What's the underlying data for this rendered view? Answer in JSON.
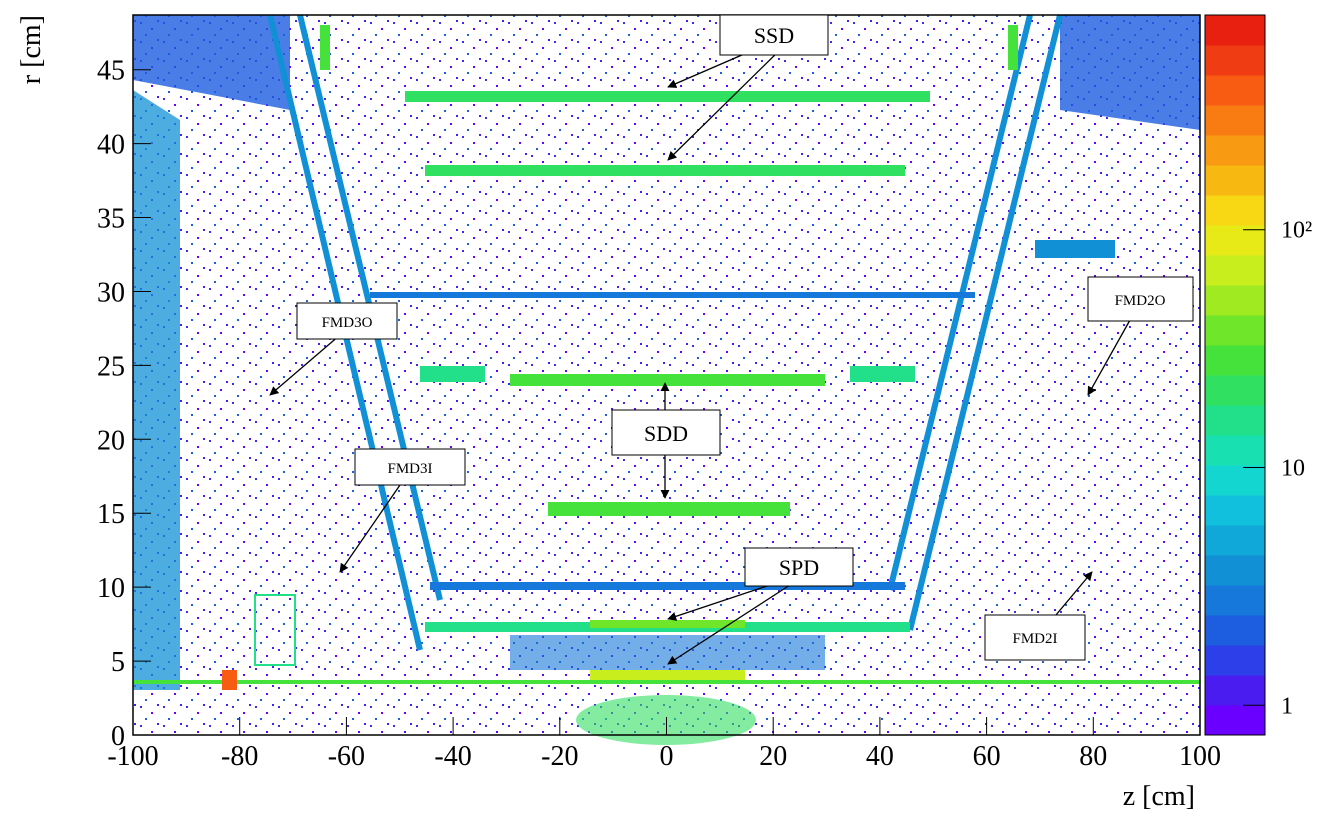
{
  "chart_data": {
    "type": "heatmap",
    "xlabel": "z [cm]",
    "ylabel": "r [cm]",
    "xlim": [
      -100,
      100
    ],
    "xticks": [
      -100,
      -80,
      -60,
      -40,
      -20,
      0,
      20,
      40,
      60,
      80,
      100
    ],
    "ylim": [
      0,
      48.7
    ],
    "yticks": [
      0,
      5,
      10,
      15,
      20,
      25,
      30,
      35,
      40,
      45
    ],
    "zlim": [
      0.75,
      800
    ],
    "zscale": "log",
    "zticks": [
      1,
      10,
      {
        "value": 100,
        "label": "10²"
      }
    ],
    "colorscale": [
      "#6a00ff",
      "#4a1cf0",
      "#2c3fe8",
      "#1d5ee0",
      "#1578da",
      "#1290d6",
      "#10a8d8",
      "#10c0dc",
      "#13d6d0",
      "#18e0b0",
      "#22e08a",
      "#30e060",
      "#46e23c",
      "#70e62a",
      "#a0ea22",
      "#c8ee1e",
      "#e8ea18",
      "#f8d814",
      "#f8b812",
      "#f89a12",
      "#f87c12",
      "#f85c12",
      "#f03c12",
      "#e82010"
    ],
    "annotations": [
      "SSD",
      "SDD",
      "SPD",
      "FMD3O",
      "FMD3I",
      "FMD2O",
      "FMD2I"
    ]
  }
}
